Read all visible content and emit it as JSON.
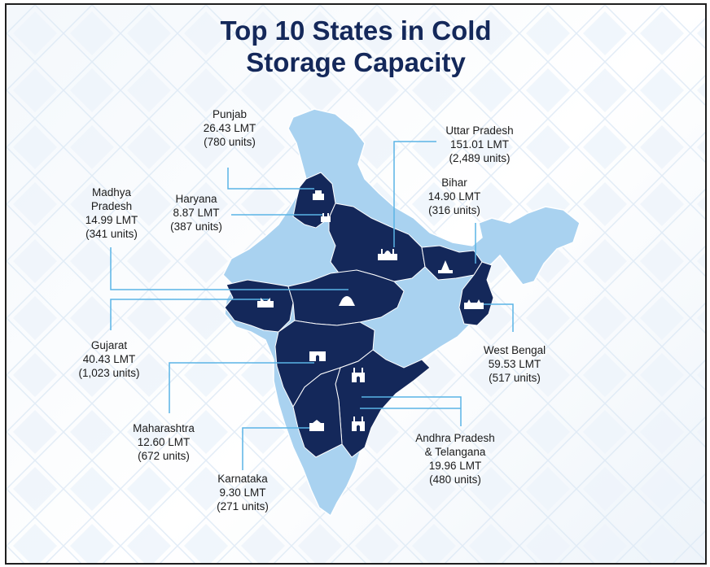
{
  "title": {
    "line1": "Top 10 States in Cold",
    "line2": "Storage Capacity"
  },
  "colors": {
    "title": "#14285a",
    "highlighted_state": "#14285a",
    "base_map": "#a9d2f0",
    "leader_line": "#5ab4e6",
    "background_pattern": "#e4eef8"
  },
  "states": [
    {
      "key": "punjab",
      "name": "Punjab",
      "capacity": "26.43 LMT",
      "units": "(780 units)"
    },
    {
      "key": "haryana",
      "name": "Haryana",
      "capacity": "8.87 LMT",
      "units": "(387 units)"
    },
    {
      "key": "madhya-pradesh",
      "name_line1": "Madhya",
      "name_line2": "Pradesh",
      "capacity": "14.99 LMT",
      "units": "(341 units)"
    },
    {
      "key": "uttar-pradesh",
      "name": "Uttar Pradesh",
      "capacity": "151.01 LMT",
      "units": "(2,489 units)"
    },
    {
      "key": "bihar",
      "name": "Bihar",
      "capacity": "14.90 LMT",
      "units": "(316 units)"
    },
    {
      "key": "gujarat",
      "name": "Gujarat",
      "capacity": "40.43 LMT",
      "units": "(1,023 units)"
    },
    {
      "key": "west-bengal",
      "name": "West Bengal",
      "capacity": "59.53 LMT",
      "units": "(517 units)"
    },
    {
      "key": "maharashtra",
      "name": "Maharashtra",
      "capacity": "12.60 LMT",
      "units": "(672 units)"
    },
    {
      "key": "andhra-telangana",
      "name_line1": "Andhra Pradesh",
      "name_line2": "& Telangana",
      "capacity": "19.96 LMT",
      "units": "(480 units)"
    },
    {
      "key": "karnataka",
      "name": "Karnataka",
      "capacity": "9.30 LMT",
      "units": "(271 units)"
    }
  ],
  "icons": [
    "punjab-monument-icon",
    "haryana-monument-icon",
    "uttar-pradesh-taj-icon",
    "bihar-temple-icon",
    "gujarat-palace-icon",
    "madhya-pradesh-stupa-icon",
    "west-bengal-memorial-icon",
    "maharashtra-gateway-icon",
    "telangana-charminar-icon",
    "andhra-charminar-icon",
    "karnataka-palace-icon"
  ]
}
